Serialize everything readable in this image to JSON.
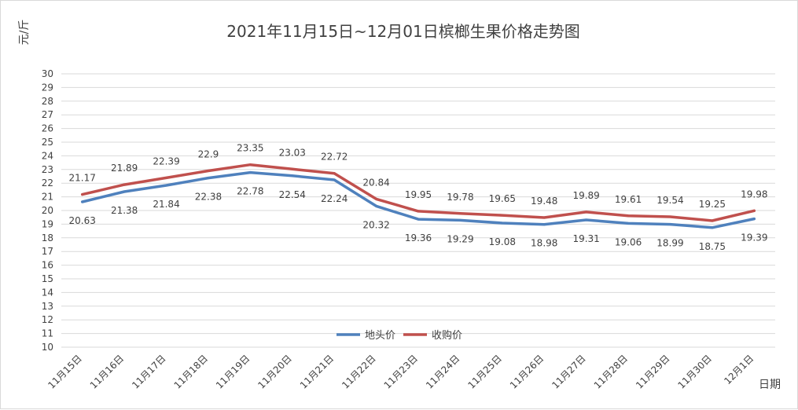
{
  "chart_data": {
    "type": "line",
    "title": "2021年11月15日~12月01日槟榔生果价格走势图",
    "ylabel": "元/斤",
    "xlabel": "日期",
    "ylim": [
      10,
      30
    ],
    "y_ticks": [
      10,
      11,
      12,
      13,
      14,
      15,
      16,
      17,
      18,
      19,
      20,
      21,
      22,
      23,
      24,
      25,
      26,
      27,
      28,
      29,
      30
    ],
    "grid": true,
    "legend_position": "bottom-center",
    "categories": [
      "11月15日",
      "11月16日",
      "11月17日",
      "11月18日",
      "11月19日",
      "11月20日",
      "11月21日",
      "11月22日",
      "11月23日",
      "11月24日",
      "11月25日",
      "11月26日",
      "11月27日",
      "11月28日",
      "11月29日",
      "11月30日",
      "12月1日"
    ],
    "series": [
      {
        "name": "地头价",
        "color": "#4f81bd",
        "label_position": "below",
        "values": [
          20.63,
          21.38,
          21.84,
          22.38,
          22.78,
          22.54,
          22.24,
          20.32,
          19.36,
          19.29,
          19.08,
          18.98,
          19.31,
          19.06,
          18.99,
          18.75,
          19.39
        ]
      },
      {
        "name": "收购价",
        "color": "#c0504d",
        "label_position": "above",
        "values": [
          21.17,
          21.89,
          22.39,
          22.9,
          23.35,
          23.03,
          22.72,
          20.84,
          19.95,
          19.78,
          19.65,
          19.48,
          19.89,
          19.61,
          19.54,
          19.25,
          19.98
        ]
      }
    ]
  }
}
